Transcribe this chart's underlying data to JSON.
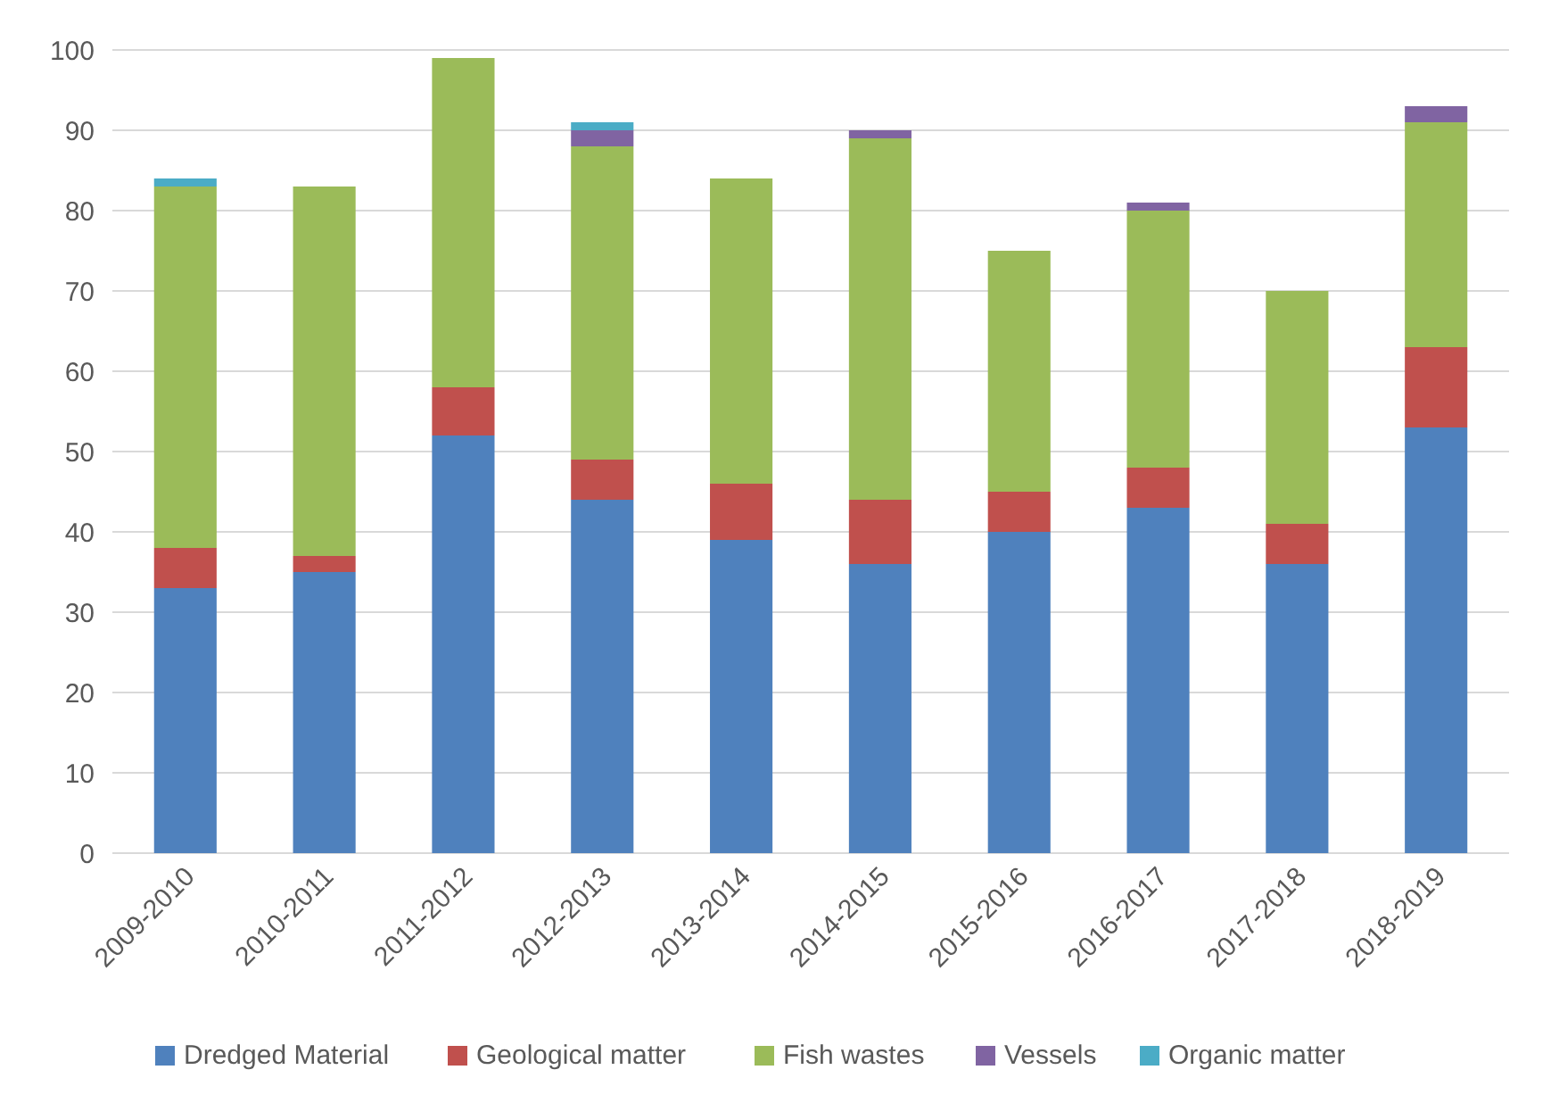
{
  "chart_data": {
    "type": "bar",
    "stacked": true,
    "categories": [
      "2009-2010",
      "2010-2011",
      "2011-2012",
      "2012-2013",
      "2013-2014",
      "2014-2015",
      "2015-2016",
      "2016-2017",
      "2017-2018",
      "2018-2019"
    ],
    "series": [
      {
        "name": "Dredged Material",
        "color": "#4f81bd",
        "values": [
          33,
          35,
          52,
          44,
          39,
          36,
          40,
          43,
          36,
          53
        ]
      },
      {
        "name": "Geological matter",
        "color": "#c0504d",
        "values": [
          5,
          2,
          6,
          5,
          7,
          8,
          5,
          5,
          5,
          10
        ]
      },
      {
        "name": "Fish wastes",
        "color": "#9bbb59",
        "values": [
          45,
          46,
          41,
          39,
          38,
          45,
          30,
          32,
          29,
          28
        ]
      },
      {
        "name": "Vessels",
        "color": "#8064a2",
        "values": [
          null,
          null,
          null,
          2,
          null,
          1,
          null,
          1,
          null,
          2
        ]
      },
      {
        "name": "Organic matter",
        "color": "#4bacc6",
        "values": [
          1,
          null,
          null,
          1,
          null,
          null,
          null,
          null,
          null,
          null
        ]
      }
    ],
    "ylim": [
      0,
      100
    ],
    "yticks": [
      0,
      10,
      20,
      30,
      40,
      50,
      60,
      70,
      80,
      90,
      100
    ],
    "grid": "y",
    "legend": "bottom"
  }
}
